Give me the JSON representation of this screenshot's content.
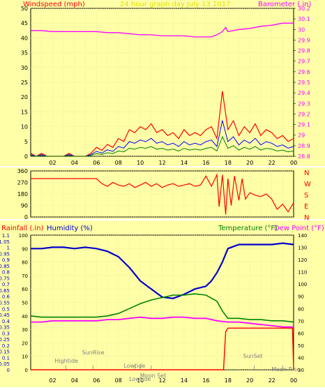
{
  "colors": {
    "panel_bg": "#ffffa8",
    "grid": "#d8d890",
    "windspeed": "#ff0000",
    "wind_gust_green": "#008000",
    "wind_avg_blue": "#0000ff",
    "barometer": "#ff00ff",
    "wind_dir": "#ff0000",
    "rainfall": "#ff0000",
    "humidity": "#0000cc",
    "temperature": "#008000",
    "dew_point": "#ff00ff",
    "title": "#e0e000",
    "event_text": "#808080"
  },
  "chart_data": [
    {
      "type": "line",
      "title": "24 hour graph day   July 13 2017",
      "left_label": "Windspeed (mph)",
      "right_label": "Barometer (.in)",
      "x_ticks": [
        "02",
        "04",
        "06",
        "08",
        "10",
        "12",
        "14",
        "16",
        "18",
        "20",
        "22",
        "00"
      ],
      "xlim": [
        0,
        24
      ],
      "ylim_left": [
        0,
        50
      ],
      "left_ticks": [
        "0",
        "5",
        "10",
        "15",
        "20",
        "25",
        "30",
        "35",
        "40",
        "45",
        "50"
      ],
      "ylim_right": [
        28.8,
        30.2
      ],
      "right_ticks": [
        "28.8",
        "28.9",
        "29",
        "29.1",
        "29.2",
        "29.3",
        "29.4",
        "29.5",
        "29.6",
        "29.7",
        "29.8",
        "29.9",
        "30",
        "30.1",
        "30.2"
      ],
      "series": [
        {
          "name": "Windspeed",
          "axis": "left",
          "x": [
            0,
            0.5,
            1,
            1.5,
            2,
            2.5,
            3,
            3.5,
            4,
            4.5,
            5,
            5.5,
            6,
            6.5,
            7,
            7.5,
            8,
            8.5,
            9,
            9.5,
            10,
            10.5,
            11,
            11.5,
            12,
            12.5,
            13,
            13.5,
            14,
            14.5,
            15,
            15.5,
            16,
            16.5,
            17,
            17.5,
            18,
            18.5,
            19,
            19.5,
            20,
            20.5,
            21,
            21.5,
            22,
            22.5,
            23,
            23.5,
            24
          ],
          "values": [
            1,
            0,
            1,
            0,
            0,
            0,
            0,
            1,
            0,
            0,
            0,
            1,
            3,
            2,
            4,
            3,
            6,
            5,
            9,
            8,
            10,
            9,
            11,
            8,
            9,
            7,
            8,
            6,
            9,
            7,
            8,
            7,
            9,
            10,
            6,
            22,
            9,
            12,
            7,
            10,
            8,
            11,
            7,
            9,
            8,
            6,
            7,
            5,
            6
          ]
        },
        {
          "name": "Barometer",
          "axis": "right",
          "x": [
            0,
            1,
            2,
            3,
            4,
            5,
            6,
            7,
            8,
            9,
            10,
            11,
            12,
            13,
            14,
            15,
            16,
            16.5,
            17,
            17.5,
            17.8,
            18,
            19,
            20,
            21,
            22,
            23,
            24
          ],
          "values": [
            29.99,
            29.99,
            29.98,
            29.98,
            29.98,
            29.98,
            29.98,
            29.97,
            29.97,
            29.96,
            29.95,
            29.95,
            29.94,
            29.94,
            29.94,
            29.93,
            29.93,
            29.93,
            29.95,
            29.98,
            30.02,
            29.98,
            30.0,
            30.01,
            30.03,
            30.04,
            30.06,
            30.06
          ]
        }
      ]
    },
    {
      "type": "line",
      "title": "",
      "ylim": [
        0,
        360
      ],
      "left_ticks": [
        "0",
        "90",
        "180",
        "270",
        "360"
      ],
      "right_labels": [
        "N",
        "W",
        "S",
        "E",
        "N"
      ],
      "series": [
        {
          "name": "Wind Direction",
          "x": [
            0,
            1,
            2,
            3,
            4,
            5,
            6,
            6.5,
            7,
            7.5,
            8,
            8.5,
            9,
            9.5,
            10,
            10.5,
            11,
            11.5,
            12,
            12.5,
            13,
            13.5,
            14,
            14.5,
            15,
            15.5,
            16,
            16.5,
            17,
            17.2,
            17.5,
            17.8,
            18,
            18.3,
            18.6,
            19,
            19.3,
            19.6,
            20,
            20.5,
            21,
            21.5,
            22,
            22.5,
            23,
            23.5,
            24
          ],
          "values": [
            300,
            300,
            300,
            300,
            300,
            300,
            300,
            260,
            240,
            270,
            250,
            240,
            260,
            230,
            250,
            270,
            240,
            260,
            230,
            250,
            260,
            240,
            250,
            260,
            240,
            250,
            320,
            240,
            330,
            80,
            330,
            20,
            300,
            90,
            320,
            130,
            300,
            140,
            190,
            170,
            160,
            180,
            140,
            60,
            100,
            40,
            110
          ]
        }
      ]
    },
    {
      "type": "line",
      "title": "",
      "left_label_1": "Rainfall (.in)",
      "left_label_2": "Humidity (%)",
      "right_label_1": "Temperature (°F)",
      "right_label_2": "Dew Point (°F)",
      "ylim_rain": [
        0,
        1.1
      ],
      "rain_ticks": [
        "0",
        "0.05",
        "0.1",
        "0.15",
        "0.2",
        "0.25",
        "0.3",
        "0.35",
        "0.4",
        "0.45",
        "0.5",
        "0.55",
        "0.6",
        "0.65",
        "0.7",
        "0.75",
        "0.8",
        "0.85",
        "0.9",
        "0.95",
        "1",
        "1.05",
        "1.1"
      ],
      "ylim_humidity": [
        0,
        100
      ],
      "humidity_ticks": [
        "0",
        "10",
        "20",
        "30",
        "40",
        "50",
        "60",
        "70",
        "80",
        "90",
        "100"
      ],
      "ylim_temp": [
        30,
        140
      ],
      "temp_ticks": [
        "30",
        "40",
        "50",
        "60",
        "70",
        "80",
        "90",
        "100",
        "110",
        "120",
        "130",
        "140"
      ],
      "series": [
        {
          "name": "Humidity",
          "axis": "humidity",
          "x": [
            0,
            1,
            2,
            3,
            4,
            5,
            6,
            7,
            8,
            9,
            10,
            11,
            12,
            13,
            14,
            15,
            16,
            16.5,
            17,
            17.5,
            18,
            19,
            20,
            21,
            22,
            23,
            24
          ],
          "values": [
            90,
            90,
            91,
            91,
            90,
            91,
            90,
            88,
            84,
            76,
            66,
            60,
            54,
            53,
            56,
            60,
            62,
            66,
            72,
            80,
            90,
            93,
            93,
            93,
            93,
            94,
            93
          ]
        },
        {
          "name": "Temperature",
          "axis": "temp",
          "x": [
            0,
            1,
            2,
            3,
            4,
            5,
            6,
            7,
            8,
            9,
            10,
            11,
            12,
            13,
            14,
            15,
            16,
            17,
            17.5,
            18,
            19,
            20,
            21,
            22,
            23,
            24
          ],
          "values": [
            74,
            73,
            73,
            73,
            73,
            73,
            73,
            74,
            76,
            80,
            84,
            87,
            89,
            91,
            91,
            92,
            91,
            86,
            78,
            72,
            72,
            71,
            71,
            70,
            70,
            69
          ]
        },
        {
          "name": "Dew Point",
          "axis": "temp",
          "x": [
            0,
            1,
            2,
            3,
            4,
            5,
            6,
            7,
            8,
            9,
            10,
            11,
            12,
            13,
            14,
            15,
            16,
            17,
            18,
            19,
            20,
            21,
            22,
            23,
            24
          ],
          "values": [
            69,
            69,
            70,
            70,
            70,
            70,
            70,
            71,
            71,
            72,
            73,
            72,
            72,
            73,
            73,
            72,
            72,
            70,
            69,
            69,
            68,
            67,
            66,
            65,
            65
          ]
        },
        {
          "name": "Rainfall",
          "axis": "rain",
          "x": [
            0,
            17.6,
            17.8,
            18,
            23.9,
            24
          ],
          "values": [
            0,
            0,
            0.31,
            0.34,
            0.34,
            0
          ]
        }
      ],
      "events": [
        {
          "label": "Hightide",
          "x": 3.2
        },
        {
          "label": "SunRise",
          "x": 5.7
        },
        {
          "label": "Lowtide",
          "x": 9.5
        },
        {
          "label": "Moon Set",
          "x": 11.0
        },
        {
          "label": "Lowtide",
          "x": 10.0
        },
        {
          "label": "SunSet",
          "x": 20.4
        },
        {
          "label": "Moon Rise",
          "x": 23.0
        }
      ]
    }
  ]
}
